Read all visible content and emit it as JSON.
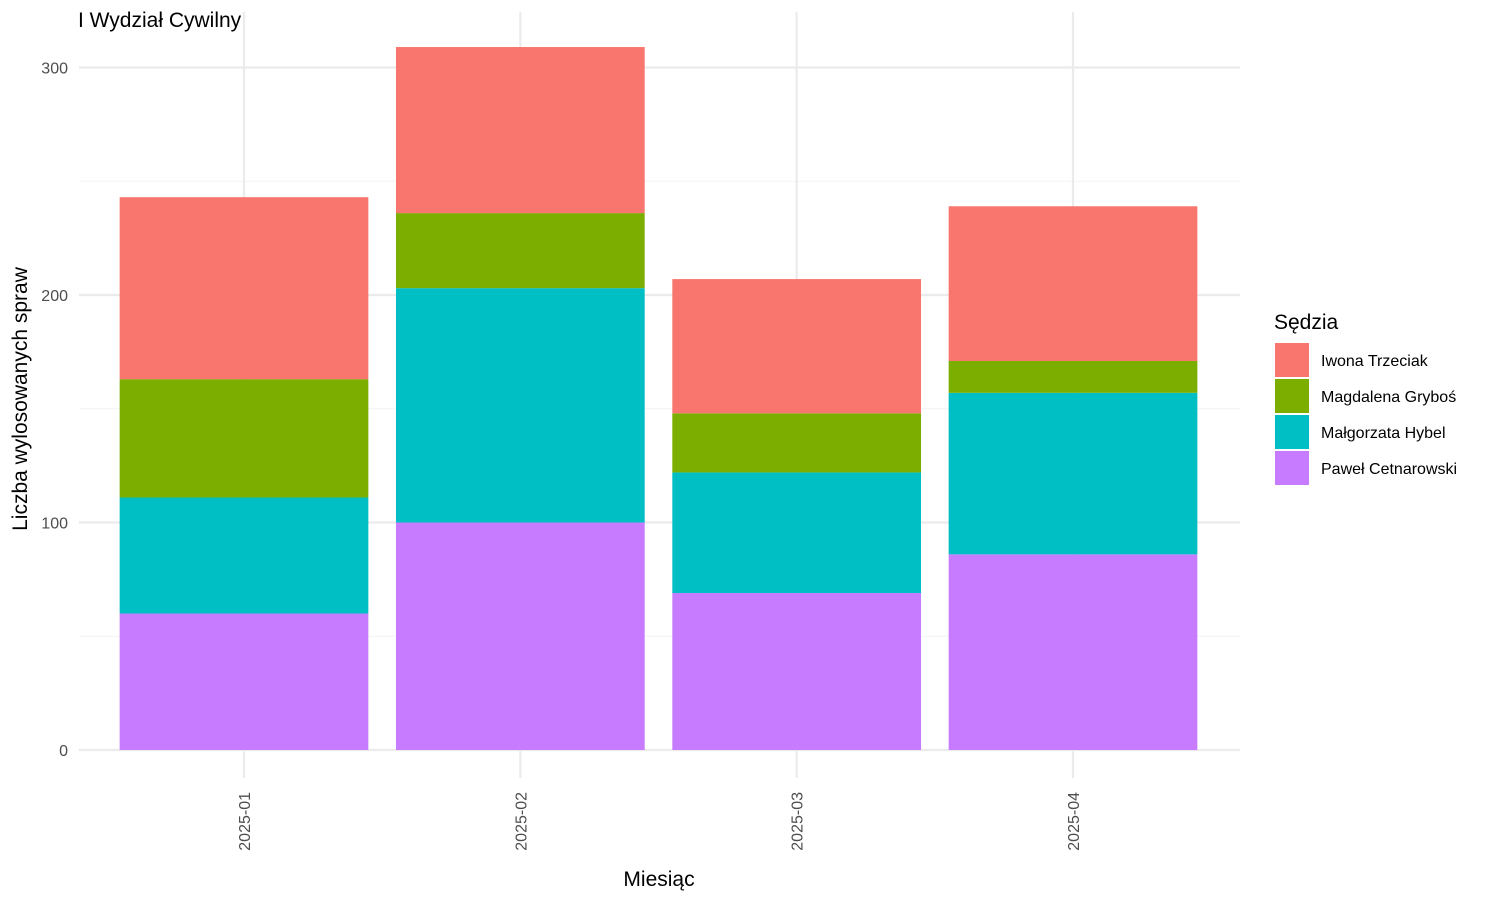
{
  "chart_data": {
    "type": "bar",
    "stacked": true,
    "title": "I Wydział Cywilny",
    "xlabel": "Miesiąc",
    "ylabel": "Liczba wylosowanych spraw",
    "categories": [
      "2025-01",
      "2025-02",
      "2025-03",
      "2025-04"
    ],
    "ylim": [
      0,
      310
    ],
    "yticks": [
      0,
      100,
      200,
      300
    ],
    "grid": true,
    "legend": {
      "title": "Sędzia",
      "position": "right"
    },
    "series": [
      {
        "name": "Paweł Cetnarowski",
        "color": "#C77CFF",
        "values": [
          60,
          100,
          69,
          86
        ]
      },
      {
        "name": "Małgorzata Hybel",
        "color": "#00BFC4",
        "values": [
          51,
          103,
          53,
          71
        ]
      },
      {
        "name": "Magdalena Gryboś",
        "color": "#7CAE00",
        "values": [
          52,
          33,
          26,
          14
        ]
      },
      {
        "name": "Iwona Trzeciak",
        "color": "#F8766D",
        "values": [
          80,
          73,
          59,
          68
        ]
      }
    ]
  }
}
